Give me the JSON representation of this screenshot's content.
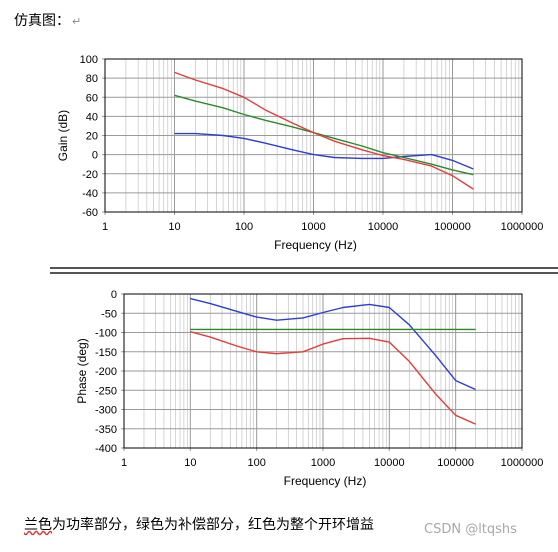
{
  "heading": "仿真图：",
  "caption": {
    "lead": "兰色",
    "rest": "为功率部分，绿色为补偿部分，红色为整个开环增益"
  },
  "watermark": "CSDN @ltqshs",
  "colors": {
    "blue": "#2e3ed0",
    "green": "#2a8a2a",
    "red": "#e23c3c",
    "grid": "#9a9a9a",
    "frame": "#000000"
  },
  "chart_data": [
    {
      "type": "line",
      "title": "",
      "xlabel": "Frequency (Hz)",
      "ylabel": "Gain (dB)",
      "xscale": "log",
      "xlim": [
        1,
        1000000
      ],
      "ylim": [
        -60,
        100
      ],
      "xticks": [
        1,
        10,
        100,
        1000,
        10000,
        100000,
        1000000
      ],
      "xtick_labels": [
        "1",
        "10",
        "100",
        "1000",
        "10000",
        "100000",
        "1000000"
      ],
      "yticks": [
        -60,
        -40,
        -20,
        0,
        20,
        40,
        60,
        80,
        100
      ],
      "ytick_labels": [
        "-60",
        "-40",
        "-20",
        "0",
        "20",
        "40",
        "60",
        "80",
        "100"
      ],
      "grid": true,
      "series": [
        {
          "color": "blue",
          "x": [
            10,
            20,
            50,
            100,
            200,
            500,
            1000,
            2000,
            5000,
            10000,
            20000,
            50000,
            100000,
            200000
          ],
          "y": [
            22,
            22,
            20,
            17,
            12,
            5,
            0,
            -3,
            -4,
            -4,
            -2,
            0,
            -6,
            -15
          ]
        },
        {
          "color": "green",
          "x": [
            10,
            20,
            50,
            100,
            200,
            500,
            1000,
            2000,
            5000,
            10000,
            20000,
            50000,
            100000,
            200000
          ],
          "y": [
            62,
            56,
            49,
            42,
            36,
            29,
            23,
            17,
            9,
            2,
            -3,
            -10,
            -16,
            -21
          ]
        },
        {
          "color": "red",
          "x": [
            10,
            20,
            50,
            100,
            200,
            500,
            1000,
            2000,
            5000,
            10000,
            20000,
            50000,
            100000,
            200000
          ],
          "y": [
            86,
            78,
            69,
            60,
            47,
            33,
            23,
            14,
            5,
            -1,
            -5,
            -12,
            -22,
            -36
          ]
        }
      ]
    },
    {
      "type": "line",
      "title": "",
      "xlabel": "Frequency (Hz)",
      "ylabel": "Phase (deg)",
      "xscale": "log",
      "xlim": [
        1,
        1000000
      ],
      "ylim": [
        -400,
        0
      ],
      "xticks": [
        1,
        10,
        100,
        1000,
        10000,
        100000,
        1000000
      ],
      "xtick_labels": [
        "1",
        "10",
        "100",
        "1000",
        "10000",
        "100000",
        "1000000"
      ],
      "yticks": [
        -400,
        -350,
        -300,
        -250,
        -200,
        -150,
        -100,
        -50,
        0
      ],
      "ytick_labels": [
        "-400",
        "-350",
        "-300",
        "-250",
        "-200",
        "-150",
        "-100",
        "-50",
        "0"
      ],
      "grid": true,
      "series": [
        {
          "color": "blue",
          "x": [
            10,
            20,
            50,
            100,
            200,
            500,
            1000,
            2000,
            5000,
            10000,
            20000,
            50000,
            100000,
            200000
          ],
          "y": [
            -12,
            -25,
            -45,
            -60,
            -68,
            -62,
            -48,
            -35,
            -27,
            -35,
            -80,
            -160,
            -225,
            -248
          ]
        },
        {
          "color": "green",
          "x": [
            10,
            200000
          ],
          "y": [
            -92,
            -92
          ]
        },
        {
          "color": "red",
          "x": [
            10,
            20,
            50,
            100,
            200,
            500,
            1000,
            2000,
            5000,
            10000,
            20000,
            50000,
            100000,
            200000
          ],
          "y": [
            -98,
            -112,
            -135,
            -150,
            -155,
            -150,
            -130,
            -116,
            -115,
            -125,
            -175,
            -260,
            -315,
            -338
          ]
        }
      ]
    }
  ]
}
